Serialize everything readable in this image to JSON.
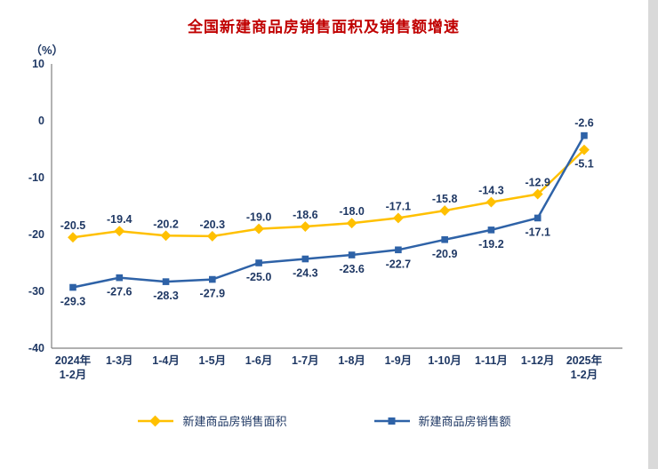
{
  "chart_data": {
    "type": "line",
    "title": "全国新建商品房销售面积及销售额增速",
    "xlabel": "",
    "ylabel": "（%）",
    "ylim": [
      -40,
      10
    ],
    "yticks": [
      10,
      0,
      -10,
      -20,
      -30,
      -40
    ],
    "grid": false,
    "legend_position": "bottom",
    "categories": [
      "2024年\n1-2月",
      "1-3月",
      "1-4月",
      "1-5月",
      "1-6月",
      "1-7月",
      "1-8月",
      "1-9月",
      "1-10月",
      "1-11月",
      "1-12月",
      "2025年\n1-2月"
    ],
    "series": [
      {
        "name": "新建商品房销售面积",
        "marker": "diamond",
        "color": "#FFC000",
        "values": [
          -20.5,
          -19.4,
          -20.2,
          -20.3,
          -19.0,
          -18.6,
          -18.0,
          -17.1,
          -15.8,
          -14.3,
          -12.9,
          -5.1
        ]
      },
      {
        "name": "新建商品房销售额",
        "marker": "square",
        "color": "#2E62A7",
        "values": [
          -29.3,
          -27.6,
          -28.3,
          -27.9,
          -25.0,
          -24.3,
          -23.6,
          -22.7,
          -20.9,
          -19.2,
          -17.1,
          -2.6
        ]
      }
    ]
  },
  "colors": {
    "title": "#C00000",
    "text": "#1F3864",
    "axis": "#808080"
  }
}
